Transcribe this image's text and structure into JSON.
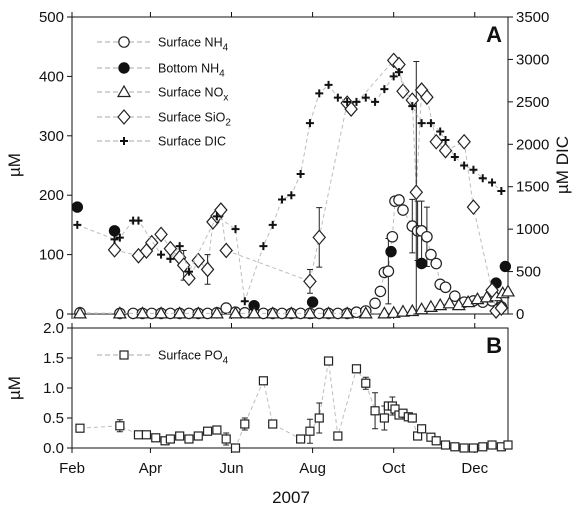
{
  "chart_data": [
    {
      "type": "scatter",
      "panel_label": "A",
      "xlabel": "2007",
      "x_tick_labels": [
        "Feb",
        "Apr",
        "Jun",
        "Aug",
        "Oct",
        "Dec"
      ],
      "x_ticks": [
        32,
        91,
        152,
        213,
        274,
        335
      ],
      "xlim": [
        32,
        360
      ],
      "ylabel": "µM",
      "ylim": [
        0,
        500
      ],
      "y_ticks": [
        0,
        100,
        200,
        300,
        400,
        500
      ],
      "y2label": "µM DIC",
      "y2lim": [
        0,
        3500
      ],
      "y2_ticks": [
        0,
        500,
        1000,
        1500,
        2000,
        2500,
        3000,
        3500
      ],
      "legend_position": "top-left",
      "series": [
        {
          "name": "Surface NH4",
          "name_main": "Surface NH",
          "name_sub": "4",
          "marker": "open-circle",
          "axis": "left",
          "x": [
            38,
            68,
            78,
            85,
            92,
            99,
            106,
            113,
            120,
            127,
            134,
            141,
            148,
            155,
            162,
            169,
            176,
            183,
            190,
            197,
            204,
            211,
            218,
            225,
            232,
            239,
            246,
            253,
            260,
            264,
            267,
            270,
            273,
            275,
            278,
            281,
            288,
            292,
            295,
            299,
            302,
            306,
            309,
            313,
            320,
            327,
            334,
            341,
            348,
            355
          ],
          "y": [
            2,
            1,
            1,
            1,
            1,
            1,
            1,
            1,
            1,
            1,
            1,
            2,
            10,
            3,
            2,
            2,
            1,
            1,
            1,
            1,
            1,
            1,
            1,
            1,
            1,
            1,
            3,
            5,
            18,
            38,
            70,
            72,
            130,
            190,
            192,
            175,
            148,
            140,
            140,
            130,
            100,
            85,
            50,
            45,
            30,
            20,
            22,
            20,
            22,
            12
          ],
          "err": [
            0,
            0,
            0,
            0,
            0,
            0,
            0,
            0,
            0,
            0,
            0,
            0,
            0,
            0,
            0,
            0,
            0,
            0,
            0,
            0,
            0,
            0,
            0,
            0,
            0,
            0,
            0,
            0,
            0,
            0,
            0,
            55,
            0,
            0,
            0,
            0,
            45,
            50,
            50,
            50,
            0,
            0,
            0,
            0,
            0,
            0,
            0,
            0,
            0,
            0
          ]
        },
        {
          "name": "Bottom NH4",
          "name_main": "Bottom NH",
          "name_sub": "4",
          "marker": "filled-circle",
          "axis": "left",
          "x": [
            36,
            64,
            169,
            213,
            272,
            295,
            351,
            358
          ],
          "y": [
            180,
            140,
            14,
            20,
            105,
            85,
            52,
            80
          ],
          "err": [
            0,
            0,
            0,
            0,
            0,
            0,
            0,
            0
          ]
        },
        {
          "name": "Surface NOx",
          "name_main": "Surface NO",
          "name_sub": "x",
          "marker": "open-triangle",
          "axis": "left",
          "x": [
            38,
            68,
            85,
            99,
            113,
            127,
            141,
            155,
            169,
            183,
            197,
            211,
            225,
            239,
            253,
            267,
            274,
            281,
            288,
            295,
            302,
            309,
            316,
            323,
            330,
            337,
            344,
            351,
            356,
            360
          ],
          "y": [
            1,
            1,
            1,
            1,
            1,
            1,
            1,
            1,
            1,
            1,
            1,
            1,
            1,
            1,
            1,
            1,
            2,
            4,
            5,
            8,
            12,
            15,
            18,
            15,
            20,
            25,
            28,
            30,
            35,
            38
          ],
          "err": [
            0,
            0,
            0,
            0,
            0,
            0,
            0,
            0,
            0,
            0,
            0,
            0,
            0,
            0,
            0,
            0,
            0,
            0,
            0,
            0,
            0,
            0,
            0,
            0,
            0,
            0,
            0,
            0,
            0,
            0
          ]
        },
        {
          "name": "Surface SiO2",
          "name_main": "Surface SiO",
          "name_sub": "2",
          "marker": "open-diamond",
          "axis": "left",
          "x": [
            64,
            82,
            88,
            92,
            99,
            106,
            113,
            116,
            120,
            127,
            134,
            138,
            141,
            144,
            148,
            211,
            218,
            239,
            242,
            274,
            278,
            281,
            288,
            291,
            295,
            299,
            306,
            313,
            327,
            334,
            348,
            351,
            355
          ],
          "y": [
            108,
            98,
            106,
            120,
            134,
            110,
            95,
            82,
            60,
            90,
            75,
            155,
            165,
            175,
            107,
            55,
            129,
            355,
            345,
            427,
            420,
            375,
            360,
            205,
            377,
            365,
            290,
            275,
            290,
            180,
            40,
            5,
            10
          ],
          "err": [
            0,
            0,
            0,
            0,
            0,
            0,
            0,
            25,
            0,
            0,
            25,
            0,
            0,
            0,
            0,
            20,
            50,
            0,
            0,
            0,
            0,
            0,
            0,
            220,
            0,
            0,
            0,
            0,
            0,
            0,
            0,
            0,
            0
          ]
        },
        {
          "name": "Surface DIC",
          "name_main": "Surface DIC",
          "name_sub": "",
          "marker": "plus",
          "axis": "right",
          "x": [
            36,
            64,
            68,
            78,
            82,
            99,
            106,
            113,
            120,
            141,
            155,
            162,
            176,
            183,
            190,
            197,
            204,
            211,
            218,
            225,
            232,
            239,
            246,
            253,
            260,
            267,
            274,
            278,
            288,
            295,
            302,
            309,
            313,
            320,
            327,
            334,
            341,
            348,
            355
          ],
          "y": [
            1050,
            880,
            900,
            1100,
            1100,
            700,
            650,
            800,
            500,
            1150,
            1000,
            150,
            800,
            1050,
            1350,
            1400,
            1650,
            2250,
            2600,
            2700,
            2550,
            2500,
            2500,
            2550,
            2500,
            2650,
            2800,
            2850,
            2450,
            2250,
            2250,
            2150,
            2050,
            1850,
            1750,
            1700,
            1600,
            1550,
            1450
          ],
          "err": []
        }
      ]
    },
    {
      "type": "scatter",
      "panel_label": "B",
      "xlabel": "2007",
      "x_tick_labels": [
        "Feb",
        "Apr",
        "Jun",
        "Aug",
        "Oct",
        "Dec"
      ],
      "x_ticks": [
        32,
        91,
        152,
        213,
        274,
        335
      ],
      "xlim": [
        32,
        360
      ],
      "ylabel": "µM",
      "ylim": [
        0,
        2.0
      ],
      "y_ticks": [
        0.0,
        0.5,
        1.0,
        1.5,
        2.0
      ],
      "y_tick_labels": [
        "0.0",
        "0.5",
        "1.0",
        "1.5",
        "2.0"
      ],
      "legend_position": "top-left",
      "series": [
        {
          "name": "Surface PO4",
          "name_main": "Surface PO",
          "name_sub": "4",
          "marker": "open-square",
          "x": [
            38,
            68,
            82,
            88,
            95,
            102,
            106,
            113,
            120,
            127,
            134,
            141,
            148,
            155,
            162,
            176,
            183,
            204,
            211,
            218,
            225,
            232,
            246,
            253,
            260,
            267,
            270,
            273,
            275,
            278,
            281,
            285,
            288,
            292,
            295,
            302,
            306,
            313,
            320,
            327,
            334,
            341,
            348,
            355,
            360
          ],
          "y": [
            0.33,
            0.37,
            0.22,
            0.22,
            0.17,
            0.12,
            0.15,
            0.2,
            0.15,
            0.2,
            0.28,
            0.3,
            0.15,
            0.0,
            0.4,
            1.12,
            0.4,
            0.15,
            0.28,
            0.5,
            1.45,
            0.2,
            1.32,
            1.08,
            0.62,
            0.5,
            0.7,
            0.7,
            0.65,
            0.55,
            0.58,
            0.52,
            0.5,
            0.2,
            0.32,
            0.18,
            0.12,
            0.05,
            0.02,
            0.0,
            0.0,
            0.02,
            0.05,
            0.02,
            0.05
          ],
          "err": [
            0,
            0.1,
            0,
            0,
            0,
            0,
            0,
            0,
            0,
            0,
            0,
            0,
            0.1,
            0,
            0.1,
            0,
            0,
            0,
            0.2,
            0.25,
            0,
            0,
            0,
            0.1,
            0.3,
            0.2,
            0,
            0.15,
            0,
            0.05,
            0,
            0,
            0,
            0,
            0,
            0,
            0,
            0,
            0,
            0,
            0,
            0,
            0,
            0,
            0
          ]
        }
      ]
    }
  ]
}
